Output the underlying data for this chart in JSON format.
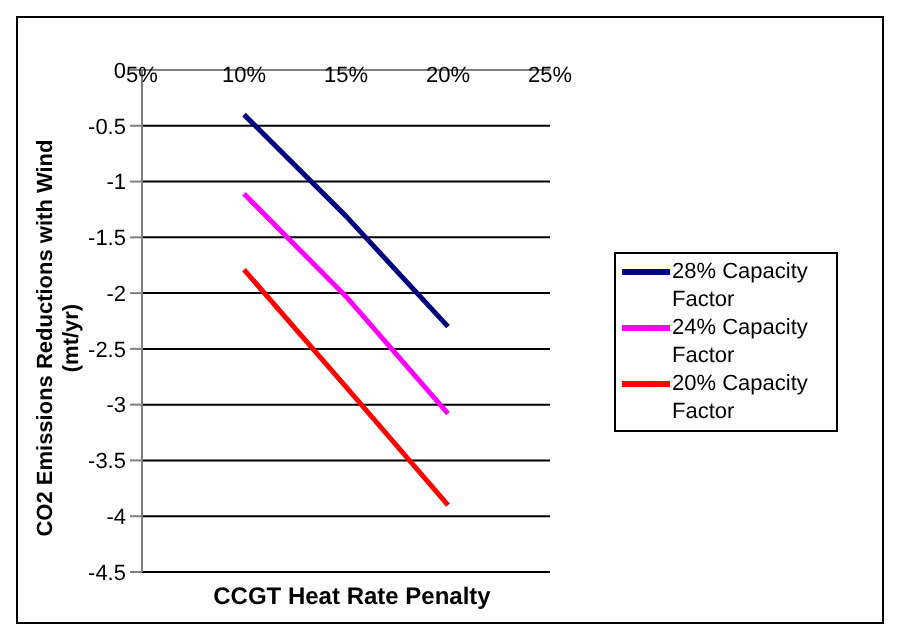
{
  "chart_data": {
    "type": "line",
    "xlabel": "CCGT Heat Rate Penalty",
    "ylabel": "CO2 Emissions Reductions  with Wind (mt/yr)",
    "x": [
      10,
      15,
      20
    ],
    "series": [
      {
        "name": "28% Capacity Factor",
        "color": "#000080",
        "values": [
          -0.4,
          -1.31,
          -2.3
        ]
      },
      {
        "name": "24% Capacity Factor",
        "color": "#ff00ff",
        "values": [
          -1.11,
          -2.03,
          -3.08
        ]
      },
      {
        "name": "20% Capacity Factor",
        "color": "#ff0000",
        "values": [
          -1.79,
          -2.84,
          -3.9
        ]
      }
    ],
    "xlim": [
      5,
      25
    ],
    "xticks": [
      {
        "value": 5,
        "label": "5%"
      },
      {
        "value": 10,
        "label": "10%"
      },
      {
        "value": 15,
        "label": "15%"
      },
      {
        "value": 20,
        "label": "20%"
      },
      {
        "value": 25,
        "label": "25%"
      }
    ],
    "ylim": [
      -4.5,
      0
    ],
    "yticks": [
      -4.5,
      -4,
      -3.5,
      -3,
      -2.5,
      -2,
      -1.5,
      -1,
      -0.5,
      0
    ],
    "grid": "y",
    "legend": "right",
    "marker": "none",
    "line_style": "solid"
  }
}
